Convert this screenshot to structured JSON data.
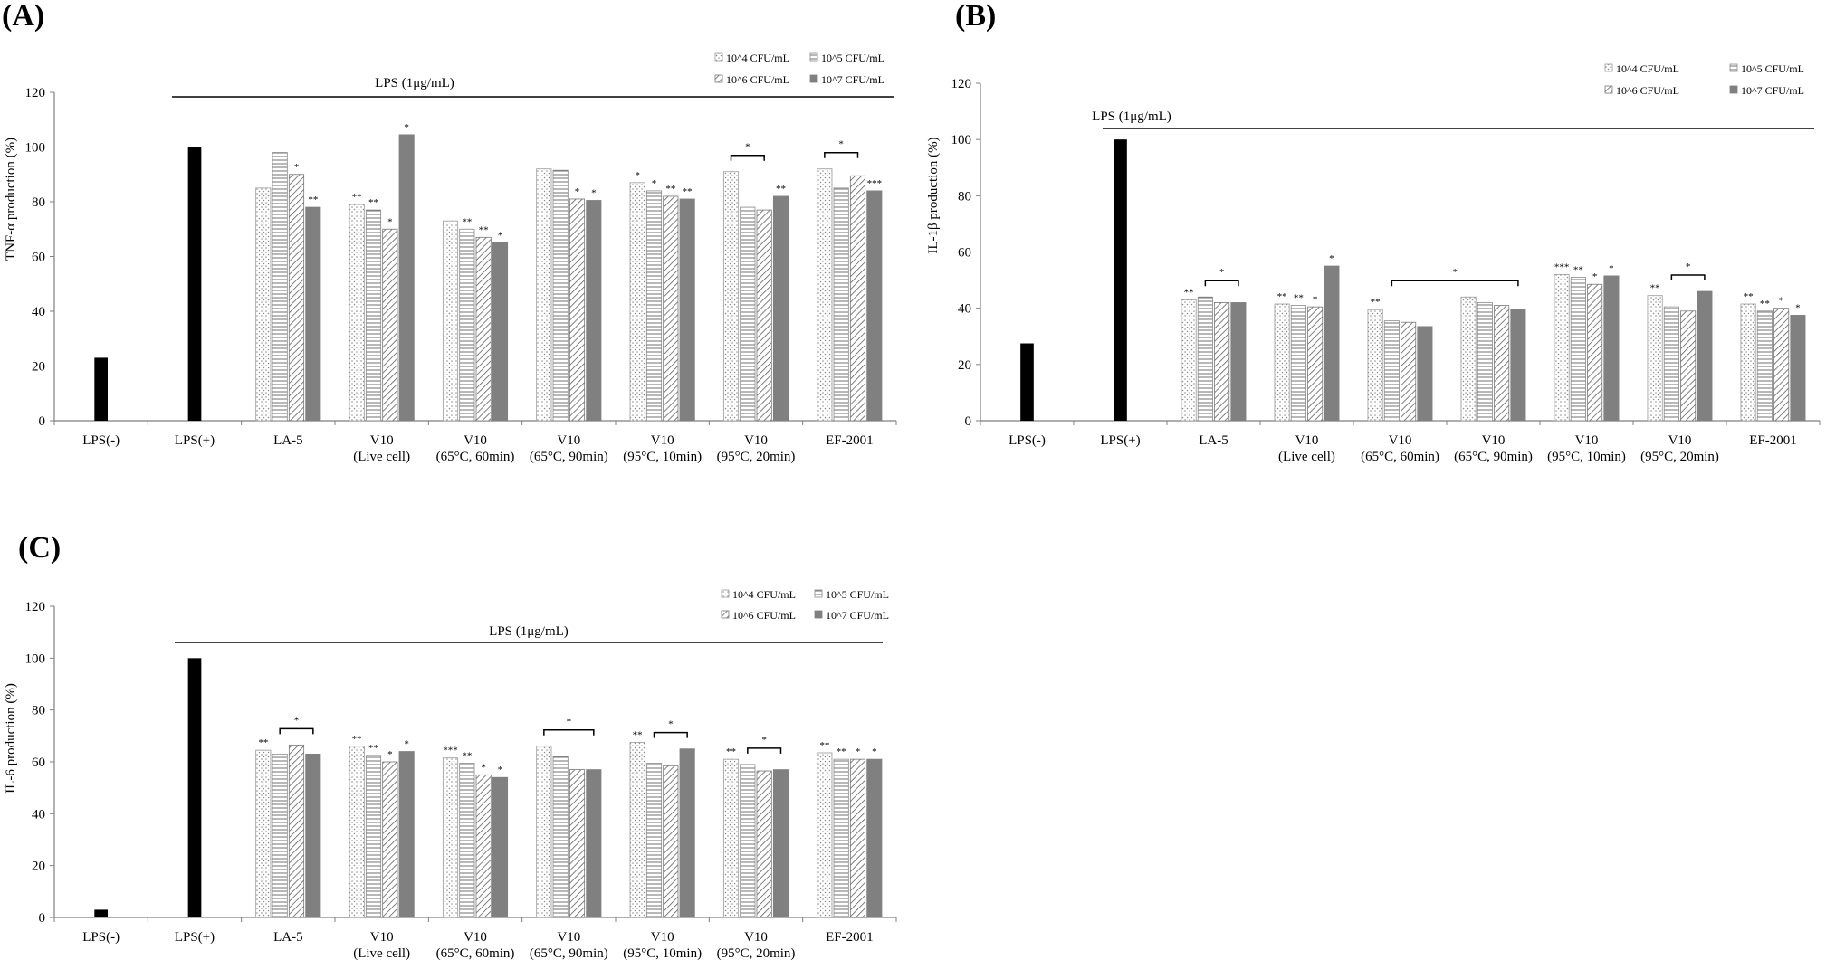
{
  "chart_data": [
    {
      "type": "bar",
      "panel_label": "(A)",
      "ylabel": "TNF-α production (%)",
      "ylim": [
        0,
        120
      ],
      "yticks": [
        "0",
        "20",
        "40",
        "60",
        "80",
        "100",
        "120"
      ],
      "lps_label": "LPS (1μg/mL)",
      "legend": [
        "10^4 CFU/mL",
        "10^5 CFU/mL",
        "10^6 CFU/mL",
        "10^7 CFU/mL"
      ],
      "legend_position": "top-right",
      "controls": [
        {
          "lines": [
            "LPS(-)"
          ],
          "value": 23
        },
        {
          "lines": [
            "LPS(+)"
          ],
          "value": 100
        }
      ],
      "groups": [
        {
          "lines": [
            "LA-5"
          ],
          "values": [
            85,
            98,
            90,
            78
          ],
          "sig": [
            "",
            "",
            "*",
            "**"
          ]
        },
        {
          "lines": [
            "V10",
            "(Live cell)"
          ],
          "values": [
            79,
            77,
            70,
            104.5
          ],
          "sig": [
            "**",
            "**",
            "*",
            "*"
          ]
        },
        {
          "lines": [
            "V10",
            "(65°C, 60min)"
          ],
          "values": [
            73,
            70,
            67,
            65
          ],
          "sig": [
            "",
            "**",
            "**",
            "*"
          ]
        },
        {
          "lines": [
            "V10",
            "(65°C, 90min)"
          ],
          "values": [
            92,
            91.5,
            81,
            80.5
          ],
          "sig": [
            "",
            "",
            "*",
            "*"
          ]
        },
        {
          "lines": [
            "V10",
            "(95°C, 10min)"
          ],
          "values": [
            87,
            84,
            82,
            81
          ],
          "sig": [
            "*",
            "*",
            "**",
            "**"
          ]
        },
        {
          "lines": [
            "V10",
            "(95°C, 20min)"
          ],
          "values": [
            91,
            78,
            77,
            82
          ],
          "sig": [
            "",
            "",
            "",
            "**"
          ]
        },
        {
          "lines": [
            "EF-2001"
          ],
          "values": [
            92,
            85,
            89.5,
            84
          ],
          "sig": [
            "",
            "",
            "",
            "***"
          ]
        }
      ],
      "brackets": [
        {
          "group": 5,
          "from": 0,
          "to": 2,
          "label": "*"
        },
        {
          "group": 6,
          "from": 0,
          "to": 2,
          "label": "*"
        }
      ]
    },
    {
      "type": "bar",
      "panel_label": "(B)",
      "ylabel": "IL-1β production (%)",
      "ylim": [
        0,
        120
      ],
      "yticks": [
        "0",
        "20",
        "40",
        "60",
        "80",
        "100",
        "120"
      ],
      "lps_label": "LPS (1μg/mL)",
      "legend": [
        "10^4 CFU/mL",
        "10^5 CFU/mL",
        "10^6 CFU/mL",
        "10^7 CFU/mL"
      ],
      "legend_position": "top-right",
      "controls": [
        {
          "lines": [
            "LPS(-)"
          ],
          "value": 27.5
        },
        {
          "lines": [
            "LPS(+)"
          ],
          "value": 100
        }
      ],
      "groups": [
        {
          "lines": [
            "LA-5"
          ],
          "values": [
            43,
            44,
            42,
            42
          ],
          "sig": [
            "**",
            "",
            "",
            ""
          ]
        },
        {
          "lines": [
            "V10",
            "(Live cell)"
          ],
          "values": [
            41.5,
            41,
            40.5,
            55
          ],
          "sig": [
            "**",
            "**",
            "*",
            "*"
          ]
        },
        {
          "lines": [
            "V10",
            "(65°C, 60min)"
          ],
          "values": [
            39.5,
            35.5,
            35,
            33.5
          ],
          "sig": [
            "**",
            "",
            "",
            ""
          ]
        },
        {
          "lines": [
            "V10",
            "(65°C, 90min)"
          ],
          "values": [
            44,
            42,
            41,
            39.5
          ],
          "sig": [
            "",
            "",
            "",
            ""
          ]
        },
        {
          "lines": [
            "V10",
            "(95°C, 10min)"
          ],
          "values": [
            52,
            51,
            48.5,
            51.5
          ],
          "sig": [
            "***",
            "**",
            "*",
            "*"
          ]
        },
        {
          "lines": [
            "V10",
            "(95°C, 20min)"
          ],
          "values": [
            44.5,
            40.5,
            39,
            46
          ],
          "sig": [
            "**",
            "",
            "",
            ""
          ]
        },
        {
          "lines": [
            "EF-2001"
          ],
          "values": [
            41.5,
            39,
            40,
            37.5
          ],
          "sig": [
            "**",
            "**",
            "*",
            "*"
          ]
        }
      ],
      "brackets": [
        {
          "group": 0,
          "from": 1,
          "to": 3,
          "label": "*"
        },
        {
          "group": 2,
          "from": 1,
          "to": 3,
          "to_group": 3,
          "label": "*"
        },
        {
          "group": 5,
          "from": 1,
          "to": 3,
          "label": "*"
        }
      ]
    },
    {
      "type": "bar",
      "panel_label": "(C)",
      "ylabel": "IL-6 production (%)",
      "ylim": [
        0,
        120
      ],
      "yticks": [
        "0",
        "20",
        "40",
        "60",
        "80",
        "100",
        "120"
      ],
      "lps_label": "LPS (1μg/mL)",
      "legend": [
        "10^4 CFU/mL",
        "10^5 CFU/mL",
        "10^6 CFU/mL",
        "10^7 CFU/mL"
      ],
      "legend_position": "top-right",
      "controls": [
        {
          "lines": [
            "LPS(-)"
          ],
          "value": 3
        },
        {
          "lines": [
            "LPS(+)"
          ],
          "value": 100
        }
      ],
      "groups": [
        {
          "lines": [
            "LA-5"
          ],
          "values": [
            64.5,
            63,
            66.5,
            63
          ],
          "sig": [
            "**",
            "",
            "",
            ""
          ]
        },
        {
          "lines": [
            "V10",
            "(Live cell)"
          ],
          "values": [
            66,
            62.5,
            60,
            64
          ],
          "sig": [
            "**",
            "**",
            "*",
            "*"
          ]
        },
        {
          "lines": [
            "V10",
            "(65°C, 60min)"
          ],
          "values": [
            61.5,
            59.5,
            55,
            54
          ],
          "sig": [
            "***",
            "**",
            "*",
            "*"
          ]
        },
        {
          "lines": [
            "V10",
            "(65°C, 90min)"
          ],
          "values": [
            66,
            62,
            57,
            57
          ],
          "sig": [
            "",
            "",
            "",
            ""
          ]
        },
        {
          "lines": [
            "V10",
            "(95°C, 10min)"
          ],
          "values": [
            67.5,
            59.5,
            58.5,
            65
          ],
          "sig": [
            "**",
            "",
            "",
            ""
          ]
        },
        {
          "lines": [
            "V10",
            "(95°C, 20min)"
          ],
          "values": [
            61,
            59,
            56.5,
            57
          ],
          "sig": [
            "**",
            "",
            "",
            ""
          ]
        },
        {
          "lines": [
            "EF-2001"
          ],
          "values": [
            63.5,
            61,
            61,
            61
          ],
          "sig": [
            "**",
            "**",
            "*",
            "*"
          ]
        }
      ],
      "brackets": [
        {
          "group": 0,
          "from": 1,
          "to": 3,
          "label": "*"
        },
        {
          "group": 3,
          "from": 0,
          "to": 3,
          "label": "*"
        },
        {
          "group": 4,
          "from": 1,
          "to": 3,
          "label": "*"
        },
        {
          "group": 5,
          "from": 1,
          "to": 3,
          "label": "*"
        }
      ]
    }
  ]
}
